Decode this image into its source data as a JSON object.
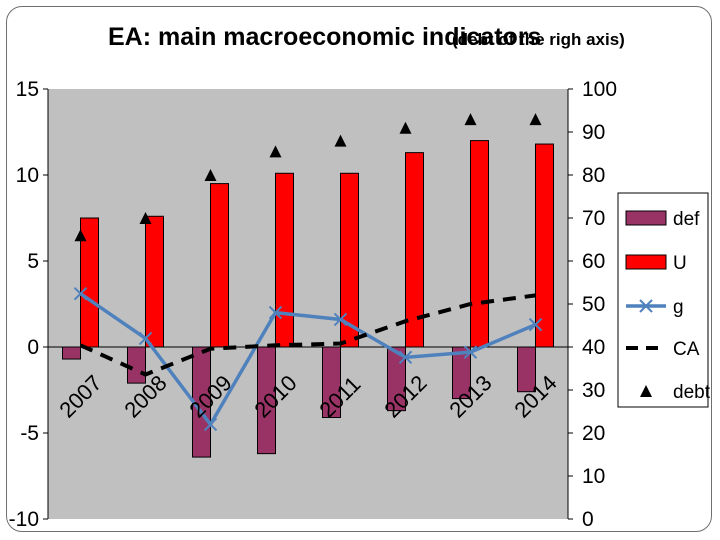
{
  "chart_data": {
    "type": "bar",
    "title": "EA: main macroeconomic indicators",
    "subtitle": "(debt of the righ axis)",
    "categories": [
      "2007",
      "2008",
      "2009",
      "2010",
      "2011",
      "2012",
      "2013",
      "2014"
    ],
    "left_axis": {
      "min": -10,
      "max": 15,
      "ticks": [
        "15",
        "10",
        "5",
        "0",
        "-5",
        "-10"
      ]
    },
    "right_axis": {
      "min": 0,
      "max": 100,
      "ticks": [
        "100",
        "90",
        "80",
        "70",
        "60",
        "50",
        "40",
        "30",
        "20",
        "10",
        "0"
      ]
    },
    "series": [
      {
        "name": "def",
        "type": "bar",
        "axis": "left",
        "color": "#993366",
        "values": [
          -0.7,
          -2.1,
          -6.4,
          -6.2,
          -4.1,
          -3.7,
          -3.0,
          -2.6
        ]
      },
      {
        "name": "U",
        "type": "bar",
        "axis": "left",
        "color": "#ff0000",
        "values": [
          7.5,
          7.6,
          9.5,
          10.1,
          10.1,
          11.3,
          12.0,
          11.8
        ]
      },
      {
        "name": "g",
        "type": "line",
        "axis": "left",
        "color": "#4f81bd",
        "marker": "x",
        "values": [
          3.1,
          0.5,
          -4.5,
          2.0,
          1.6,
          -0.6,
          -0.3,
          1.3
        ]
      },
      {
        "name": "CA",
        "type": "dashed-line",
        "axis": "left",
        "color": "#000000",
        "values": [
          0.1,
          -1.6,
          -0.1,
          0.1,
          0.2,
          1.5,
          2.5,
          3.0
        ]
      },
      {
        "name": "debt",
        "type": "markers",
        "axis": "right",
        "color": "#000000",
        "marker": "triangle",
        "values": [
          66,
          70,
          80,
          85.5,
          88,
          91,
          93,
          93
        ]
      }
    ],
    "legend": {
      "position": "right",
      "entries": [
        "def",
        "U",
        "g",
        "CA",
        "debt"
      ]
    },
    "grid": false,
    "plot_background": "#c0c0c0",
    "category_labels_rotated": true
  }
}
